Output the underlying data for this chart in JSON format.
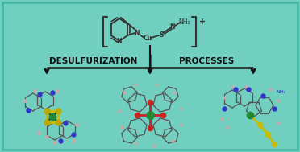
{
  "background_color": "#70CFBF",
  "border_color": "#45B8A5",
  "title_text1": "DESULFURIZATION",
  "title_sep": "|",
  "title_text2": "PROCESSES",
  "text_color": "#111111",
  "text_fontsize": 7.5,
  "text_fontweight": "bold",
  "bracket_color": "#222222",
  "figsize": [
    3.72,
    1.89
  ],
  "dpi": 100,
  "atom_colors": {
    "C": "#555555",
    "N": "#3333CC",
    "S": "#CCBB00",
    "Cu": "#228833",
    "O": "#CC2222",
    "H": "#BBBBBB",
    "bond": "#333333"
  }
}
